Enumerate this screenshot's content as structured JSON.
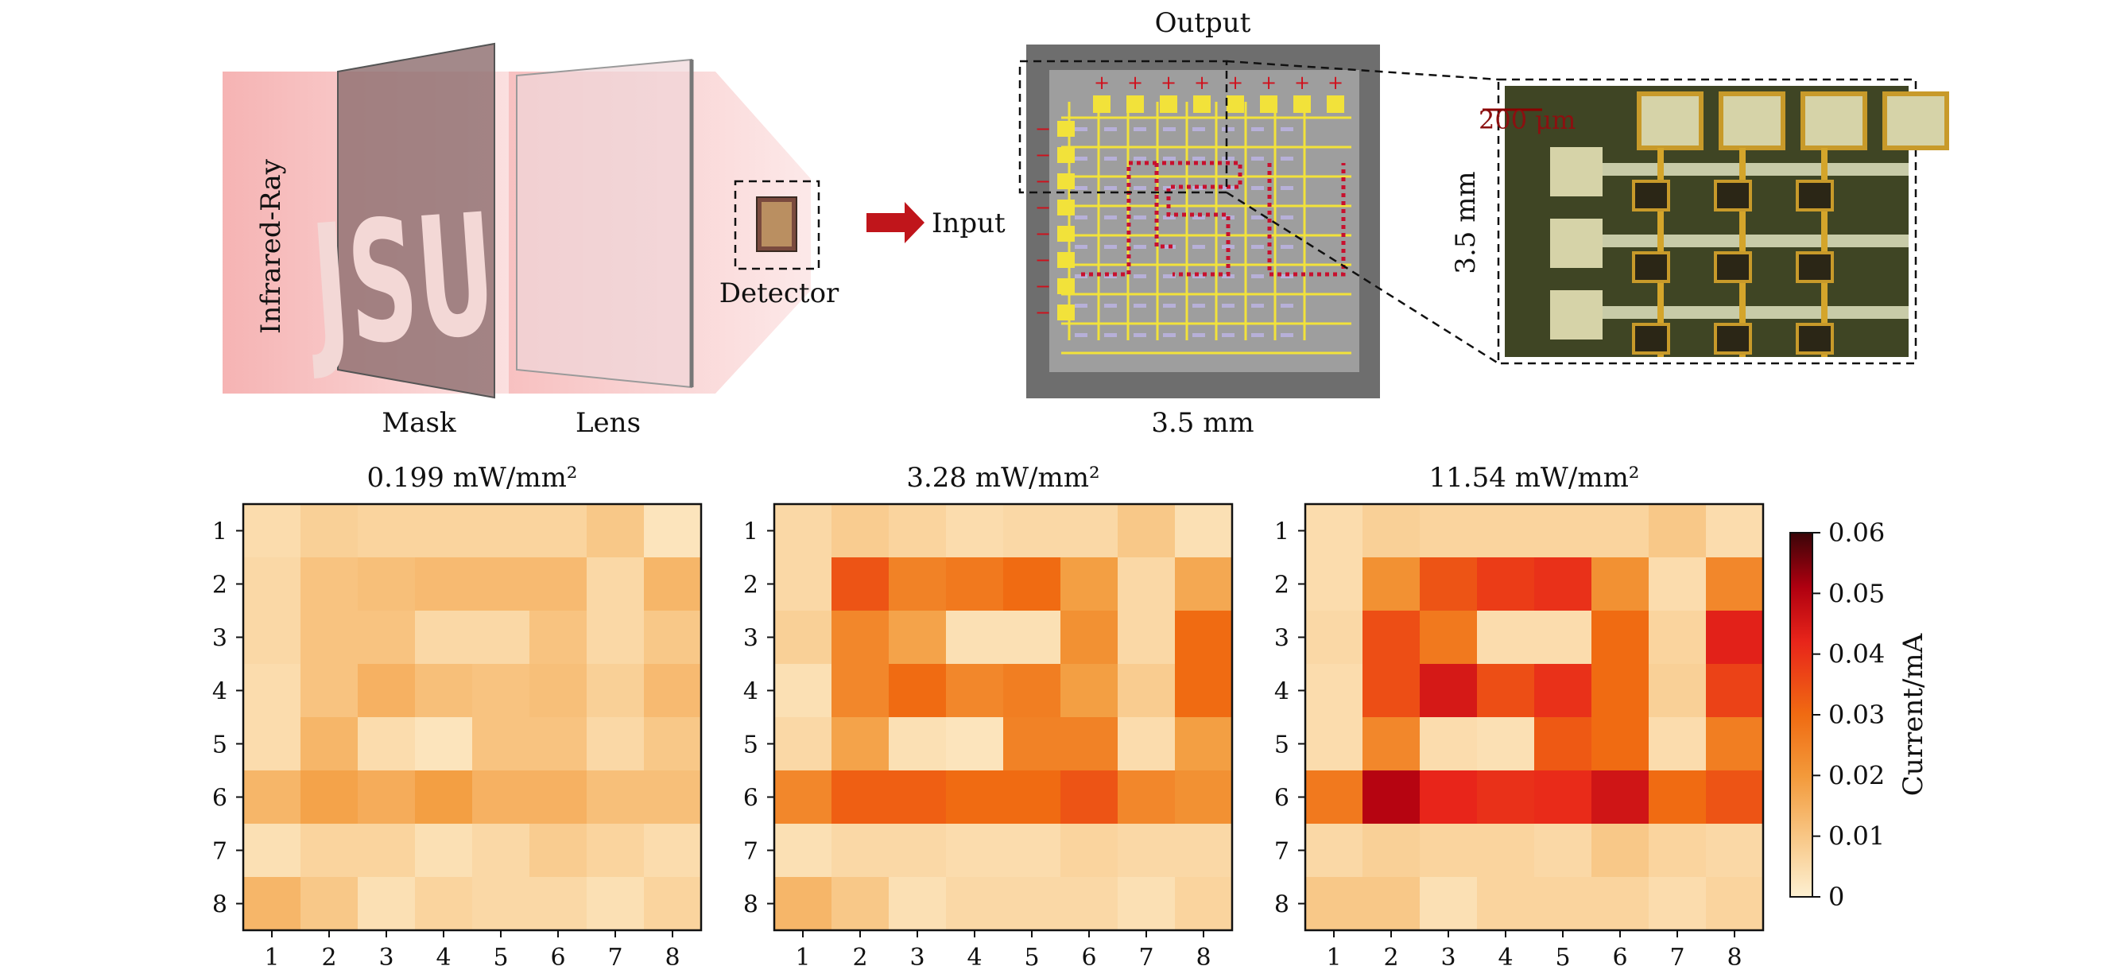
{
  "schematic": {
    "infrared_label": "Infrared-Ray",
    "mask_text": "JSU",
    "mask_label": "Mask",
    "lens_label": "Lens",
    "detector_label": "Detector",
    "input_label": "Input",
    "output_label": "Output",
    "chip_width_label": "3.5 mm",
    "chip_height_label": "3.5 mm",
    "scale_bar_label": "200 μm",
    "output_pad_symbol": "+",
    "input_pad_symbol": "−",
    "colors": {
      "infrared": "#f4a6a6",
      "arrow": "#c0151b",
      "pads": "#f2e23a",
      "route": "#c8102e",
      "chip_border": "#6b6b6b",
      "chip_body": "#9c9c9c"
    }
  },
  "colorbar": {
    "label": "Current/mA",
    "ticks": [
      "0.06",
      "0.05",
      "0.04",
      "0.03",
      "0.02",
      "0.01",
      "0"
    ],
    "stops": [
      "#fdf0d2",
      "#f8c888",
      "#f39a3b",
      "#f06b12",
      "#e8251a",
      "#b00010",
      "#3a0508"
    ]
  },
  "chart_data": [
    {
      "type": "heatmap",
      "title": "0.199 mW/mm²",
      "x_ticks": [
        "1",
        "2",
        "3",
        "4",
        "5",
        "6",
        "7",
        "8"
      ],
      "y_ticks": [
        "1",
        "2",
        "3",
        "4",
        "5",
        "6",
        "7",
        "8"
      ],
      "colorbar_label": "Current/mA",
      "vmin": 0,
      "vmax": 0.06,
      "values": [
        [
          0.005,
          0.008,
          0.007,
          0.007,
          0.007,
          0.007,
          0.01,
          0.003
        ],
        [
          0.006,
          0.011,
          0.012,
          0.013,
          0.013,
          0.013,
          0.006,
          0.014
        ],
        [
          0.006,
          0.011,
          0.011,
          0.006,
          0.006,
          0.011,
          0.006,
          0.01
        ],
        [
          0.005,
          0.011,
          0.015,
          0.012,
          0.011,
          0.012,
          0.008,
          0.013
        ],
        [
          0.005,
          0.014,
          0.005,
          0.003,
          0.011,
          0.011,
          0.006,
          0.01
        ],
        [
          0.014,
          0.018,
          0.016,
          0.019,
          0.015,
          0.015,
          0.012,
          0.012
        ],
        [
          0.004,
          0.007,
          0.007,
          0.004,
          0.006,
          0.009,
          0.007,
          0.005
        ],
        [
          0.014,
          0.01,
          0.004,
          0.007,
          0.006,
          0.006,
          0.004,
          0.007
        ]
      ]
    },
    {
      "type": "heatmap",
      "title": "3.28 mW/mm²",
      "x_ticks": [
        "1",
        "2",
        "3",
        "4",
        "5",
        "6",
        "7",
        "8"
      ],
      "y_ticks": [
        "1",
        "2",
        "3",
        "4",
        "5",
        "6",
        "7",
        "8"
      ],
      "colorbar_label": "Current/mA",
      "vmin": 0,
      "vmax": 0.06,
      "values": [
        [
          0.006,
          0.009,
          0.007,
          0.005,
          0.006,
          0.006,
          0.01,
          0.004
        ],
        [
          0.006,
          0.034,
          0.025,
          0.027,
          0.03,
          0.019,
          0.006,
          0.017
        ],
        [
          0.008,
          0.024,
          0.018,
          0.004,
          0.004,
          0.022,
          0.006,
          0.03
        ],
        [
          0.004,
          0.024,
          0.03,
          0.024,
          0.026,
          0.019,
          0.009,
          0.03
        ],
        [
          0.006,
          0.018,
          0.004,
          0.003,
          0.025,
          0.025,
          0.005,
          0.019
        ],
        [
          0.024,
          0.032,
          0.032,
          0.03,
          0.03,
          0.034,
          0.024,
          0.022
        ],
        [
          0.004,
          0.006,
          0.006,
          0.005,
          0.005,
          0.007,
          0.006,
          0.006
        ],
        [
          0.014,
          0.01,
          0.004,
          0.006,
          0.006,
          0.006,
          0.004,
          0.007
        ]
      ]
    },
    {
      "type": "heatmap",
      "title": "11.54 mW/mm²",
      "x_ticks": [
        "1",
        "2",
        "3",
        "4",
        "5",
        "6",
        "7",
        "8"
      ],
      "y_ticks": [
        "1",
        "2",
        "3",
        "4",
        "5",
        "6",
        "7",
        "8"
      ],
      "colorbar_label": "Current/mA",
      "vmin": 0,
      "vmax": 0.06,
      "values": [
        [
          0.005,
          0.008,
          0.007,
          0.007,
          0.007,
          0.007,
          0.01,
          0.005
        ],
        [
          0.005,
          0.022,
          0.034,
          0.038,
          0.04,
          0.022,
          0.005,
          0.024
        ],
        [
          0.006,
          0.035,
          0.027,
          0.005,
          0.005,
          0.03,
          0.007,
          0.043
        ],
        [
          0.005,
          0.035,
          0.045,
          0.035,
          0.04,
          0.03,
          0.008,
          0.037
        ],
        [
          0.005,
          0.024,
          0.005,
          0.004,
          0.033,
          0.03,
          0.005,
          0.026
        ],
        [
          0.027,
          0.05,
          0.042,
          0.04,
          0.041,
          0.046,
          0.03,
          0.034
        ],
        [
          0.006,
          0.008,
          0.007,
          0.007,
          0.006,
          0.01,
          0.007,
          0.006
        ],
        [
          0.01,
          0.01,
          0.004,
          0.007,
          0.007,
          0.007,
          0.005,
          0.007
        ]
      ]
    }
  ]
}
